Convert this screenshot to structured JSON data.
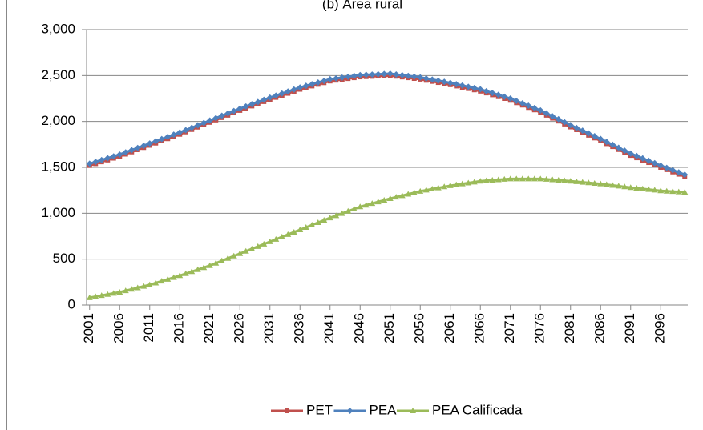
{
  "chart_data": {
    "type": "line",
    "title": "(b) Área rural",
    "x": [
      2001,
      2002,
      2003,
      2004,
      2005,
      2006,
      2007,
      2008,
      2009,
      2010,
      2011,
      2012,
      2013,
      2014,
      2015,
      2016,
      2017,
      2018,
      2019,
      2020,
      2021,
      2022,
      2023,
      2024,
      2025,
      2026,
      2027,
      2028,
      2029,
      2030,
      2031,
      2032,
      2033,
      2034,
      2035,
      2036,
      2037,
      2038,
      2039,
      2040,
      2041,
      2042,
      2043,
      2044,
      2045,
      2046,
      2047,
      2048,
      2049,
      2050,
      2051,
      2052,
      2053,
      2054,
      2055,
      2056,
      2057,
      2058,
      2059,
      2060,
      2061,
      2062,
      2063,
      2064,
      2065,
      2066,
      2067,
      2068,
      2069,
      2070,
      2071,
      2072,
      2073,
      2074,
      2075,
      2076,
      2077,
      2078,
      2079,
      2080,
      2081,
      2082,
      2083,
      2084,
      2085,
      2086,
      2087,
      2088,
      2089,
      2090,
      2091,
      2092,
      2093,
      2094,
      2095,
      2096,
      2097,
      2098,
      2099,
      2100
    ],
    "series": [
      {
        "name": "PET",
        "color": "#c0504d",
        "marker": "square",
        "values": [
          1520,
          1540,
          1560,
          1580,
          1600,
          1620,
          1644,
          1668,
          1692,
          1716,
          1740,
          1764,
          1788,
          1812,
          1836,
          1860,
          1886,
          1912,
          1938,
          1964,
          1990,
          2016,
          2042,
          2068,
          2094,
          2120,
          2144,
          2168,
          2192,
          2216,
          2240,
          2262,
          2284,
          2306,
          2328,
          2350,
          2368,
          2386,
          2404,
          2422,
          2440,
          2449,
          2458,
          2467,
          2476,
          2485,
          2488,
          2491,
          2494,
          2497,
          2500,
          2492,
          2484,
          2476,
          2468,
          2460,
          2448,
          2436,
          2424,
          2412,
          2400,
          2386,
          2372,
          2358,
          2344,
          2330,
          2310,
          2290,
          2270,
          2250,
          2230,
          2204,
          2178,
          2152,
          2126,
          2100,
          2068,
          2036,
          2004,
          1972,
          1940,
          1910,
          1880,
          1850,
          1820,
          1790,
          1758,
          1726,
          1694,
          1662,
          1630,
          1604,
          1578,
          1552,
          1526,
          1500,
          1475,
          1450,
          1425,
          1400
        ]
      },
      {
        "name": "PEA",
        "color": "#4f81bd",
        "marker": "diamond",
        "values": [
          1540,
          1560,
          1580,
          1600,
          1620,
          1640,
          1664,
          1688,
          1712,
          1736,
          1760,
          1784,
          1808,
          1832,
          1856,
          1880,
          1906,
          1932,
          1958,
          1984,
          2010,
          2036,
          2062,
          2088,
          2114,
          2140,
          2164,
          2188,
          2212,
          2236,
          2260,
          2282,
          2304,
          2326,
          2348,
          2370,
          2388,
          2406,
          2424,
          2442,
          2460,
          2469,
          2478,
          2487,
          2496,
          2505,
          2508,
          2511,
          2514,
          2517,
          2520,
          2512,
          2504,
          2496,
          2488,
          2480,
          2468,
          2456,
          2444,
          2432,
          2420,
          2406,
          2392,
          2378,
          2364,
          2350,
          2330,
          2310,
          2290,
          2270,
          2250,
          2224,
          2198,
          2172,
          2146,
          2120,
          2088,
          2056,
          2024,
          1992,
          1960,
          1930,
          1900,
          1870,
          1840,
          1810,
          1778,
          1746,
          1714,
          1682,
          1650,
          1624,
          1598,
          1572,
          1546,
          1520,
          1495,
          1470,
          1445,
          1420
        ]
      },
      {
        "name": "PEA Calificada",
        "color": "#9bbb59",
        "marker": "triangle",
        "values": [
          80,
          92,
          104,
          116,
          128,
          140,
          156,
          172,
          188,
          204,
          220,
          240,
          260,
          280,
          300,
          320,
          342,
          364,
          386,
          408,
          430,
          456,
          482,
          508,
          534,
          560,
          586,
          612,
          638,
          664,
          690,
          716,
          742,
          768,
          794,
          820,
          846,
          872,
          898,
          924,
          950,
          974,
          998,
          1022,
          1046,
          1070,
          1088,
          1106,
          1124,
          1142,
          1160,
          1176,
          1192,
          1208,
          1224,
          1240,
          1252,
          1264,
          1276,
          1288,
          1300,
          1310,
          1320,
          1330,
          1340,
          1350,
          1355,
          1360,
          1365,
          1370,
          1375,
          1375,
          1375,
          1375,
          1375,
          1375,
          1370,
          1365,
          1360,
          1355,
          1350,
          1344,
          1338,
          1332,
          1326,
          1320,
          1312,
          1304,
          1296,
          1288,
          1280,
          1273,
          1266,
          1259,
          1252,
          1245,
          1241,
          1237,
          1233,
          1230
        ]
      }
    ],
    "xlim": [
      2000.5,
      2100.5
    ],
    "xticks": [
      2001,
      2006,
      2011,
      2016,
      2021,
      2026,
      2031,
      2036,
      2041,
      2046,
      2051,
      2056,
      2061,
      2066,
      2071,
      2076,
      2081,
      2086,
      2091,
      2096
    ],
    "ylim": [
      0,
      3000
    ],
    "yticks": [
      0,
      {
        "value": 500,
        "label": "500"
      },
      {
        "value": 1000,
        "label": "1,000"
      },
      {
        "value": 1500,
        "label": "1,500"
      },
      {
        "value": 2000,
        "label": "2,000"
      },
      {
        "value": 2500,
        "label": "2,500"
      },
      {
        "value": 3000,
        "label": "3,000"
      }
    ],
    "grid": true,
    "legend": "bottom"
  }
}
